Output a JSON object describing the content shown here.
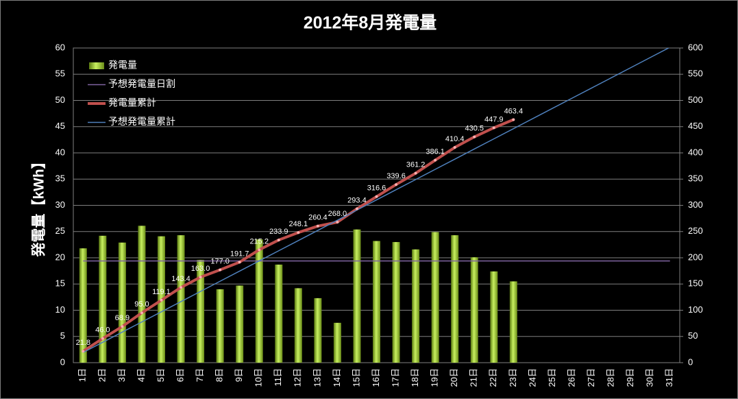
{
  "chart_data": {
    "type": "bar",
    "title": "2012年8月発電量",
    "y_label": "発電量【kWh】",
    "categories": [
      "1日",
      "2日",
      "3日",
      "4日",
      "5日",
      "6日",
      "7日",
      "8日",
      "9日",
      "10日",
      "11日",
      "12日",
      "13日",
      "14日",
      "15日",
      "16日",
      "17日",
      "18日",
      "19日",
      "20日",
      "21日",
      "22日",
      "23日",
      "24日",
      "25日",
      "26日",
      "27日",
      "28日",
      "29日",
      "30日",
      "31日"
    ],
    "ylim": [
      0,
      60
    ],
    "yticks": [
      0,
      5,
      10,
      15,
      20,
      25,
      30,
      35,
      40,
      45,
      50,
      55,
      60
    ],
    "y2lim": [
      0,
      600
    ],
    "y2ticks": [
      0,
      50,
      100,
      150,
      200,
      250,
      300,
      350,
      400,
      450,
      500,
      550,
      600
    ],
    "grid": true,
    "legend": "top-left",
    "series": [
      {
        "name": "発電量",
        "type": "bar",
        "color": "#9acd32",
        "values": [
          21.8,
          24.2,
          22.9,
          26.1,
          24.1,
          24.3,
          19.6,
          14.0,
          14.7,
          23.5,
          18.7,
          14.2,
          12.3,
          7.6,
          25.4,
          23.2,
          23.0,
          21.6,
          24.9,
          24.3,
          20.1,
          17.4,
          15.5,
          null,
          null,
          null,
          null,
          null,
          null,
          null,
          null
        ]
      },
      {
        "name": "予想発電量日割",
        "type": "line",
        "color": "#8064a2",
        "values": [
          19.4,
          19.4,
          19.4,
          19.4,
          19.4,
          19.4,
          19.4,
          19.4,
          19.4,
          19.4,
          19.4,
          19.4,
          19.4,
          19.4,
          19.4,
          19.4,
          19.4,
          19.4,
          19.4,
          19.4,
          19.4,
          19.4,
          19.4,
          19.4,
          19.4,
          19.4,
          19.4,
          19.4,
          19.4,
          19.4,
          19.4
        ]
      },
      {
        "name": "発電量累計",
        "type": "line",
        "color": "#c0504d",
        "axis": "y2",
        "values": [
          21.8,
          46.0,
          68.9,
          95.0,
          119.1,
          143.4,
          163.0,
          177.0,
          191.7,
          215.2,
          233.9,
          248.1,
          260.4,
          268.0,
          293.4,
          316.6,
          339.6,
          361.2,
          386.1,
          410.4,
          430.5,
          447.9,
          463.4,
          null,
          null,
          null,
          null,
          null,
          null,
          null,
          null
        ],
        "value_labels": [
          "21.8",
          "46.0",
          "68.9",
          "95.0",
          "119.1",
          "143.4",
          "163.0",
          "177.0",
          "191.7",
          "215.2",
          "233.9",
          "248.1",
          "260.4",
          "268.0",
          "293.4",
          "316.6",
          "339.6",
          "361.2",
          "386.1",
          "410.4",
          "430.5",
          "447.9",
          "463.4",
          null,
          null,
          null,
          null,
          null,
          null,
          null,
          null
        ]
      },
      {
        "name": "予想発電量累計",
        "type": "line",
        "color": "#4f81bd",
        "axis": "y2",
        "values": [
          19.4,
          38.8,
          58.2,
          77.6,
          97,
          116.4,
          135.8,
          155.2,
          174.6,
          194,
          213.4,
          232.8,
          252.2,
          271.6,
          291,
          310.4,
          329.8,
          349.2,
          368.6,
          388,
          407.4,
          426.8,
          446.2,
          465.6,
          485,
          504.4,
          523.8,
          543.2,
          562.6,
          582,
          601.4
        ]
      }
    ]
  }
}
